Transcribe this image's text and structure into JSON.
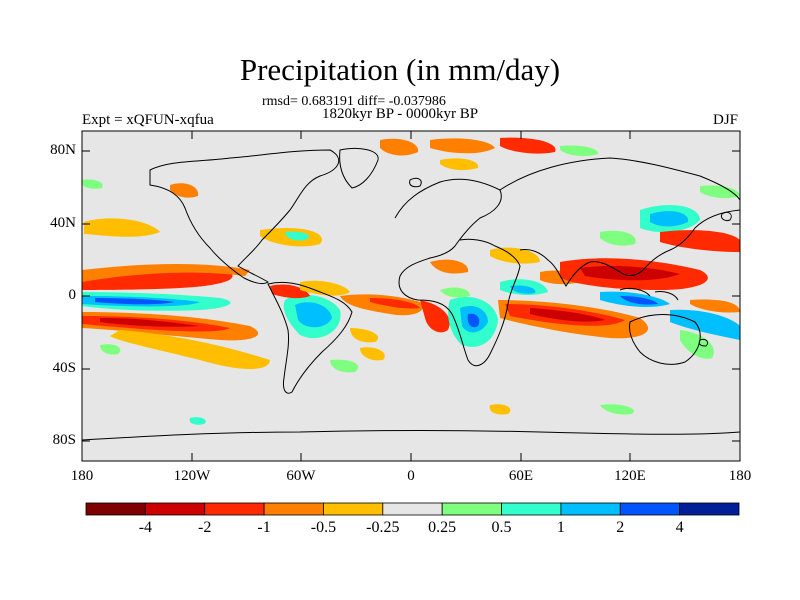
{
  "title": "Precipitation (in mm/day)",
  "stats_line": "rmsd= 0.683191 diff= -0.037986",
  "period": "1820kyr BP - 0000kyr BP",
  "experiment": "Expt = xQFUN-xqfua",
  "season": "DJF",
  "axes": {
    "lat_ticks": [
      "80N",
      "40N",
      "0",
      "40S",
      "80S"
    ],
    "lon_ticks": [
      "180",
      "120W",
      "60W",
      "0",
      "60E",
      "120E",
      "180"
    ]
  },
  "colorbar": {
    "colors": [
      "#7f0000",
      "#cc0000",
      "#ff2a00",
      "#ff7f00",
      "#ffbf00",
      "#e6e6e6",
      "#7fff7f",
      "#33ffcc",
      "#00bfff",
      "#0055ff",
      "#001f99"
    ],
    "labels": [
      "-4",
      "-2",
      "-1",
      "-0.5",
      "-0.25",
      "0.25",
      "0.5",
      "1",
      "2",
      "4"
    ]
  },
  "colors": {
    "ocean_background": "#e6e6e6",
    "coastline": "#000000"
  },
  "pattern_regions": [
    {
      "id": "pac-north-red",
      "level": "-2"
    },
    {
      "id": "pac-south-red",
      "level": "-4"
    },
    {
      "id": "pac-blue",
      "level": "2"
    },
    {
      "id": "atl-red",
      "level": "-2"
    },
    {
      "id": "brazil-blue",
      "level": "2"
    },
    {
      "id": "south-africa-blue",
      "level": "2"
    },
    {
      "id": "indian-ocean-red",
      "level": "-4"
    },
    {
      "id": "maritime-cont-red",
      "level": "-4"
    },
    {
      "id": "north-pac-blue",
      "level": "1"
    },
    {
      "id": "arctic-orange",
      "level": "-1"
    }
  ]
}
